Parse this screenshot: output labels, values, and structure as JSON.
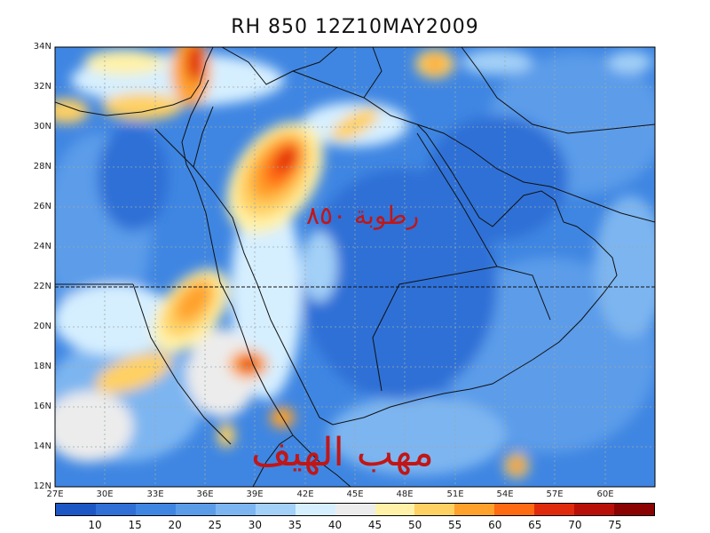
{
  "map": {
    "title": "RH 850 12Z10MAY2009",
    "lat_labels": [
      "34N",
      "32N",
      "30N",
      "28N",
      "26N",
      "24N",
      "22N",
      "20N",
      "18N",
      "16N",
      "14N",
      "12N"
    ],
    "lon_labels": [
      "27E",
      "30E",
      "33E",
      "36E",
      "39E",
      "42E",
      "45E",
      "48E",
      "51E",
      "54E",
      "57E",
      "60E"
    ],
    "overlay_text_top": "رطوبة ٨٥٠",
    "overlay_text_bottom": "مهب الهيف"
  },
  "legend": {
    "labels": [
      "10",
      "15",
      "20",
      "25",
      "30",
      "35",
      "40",
      "45",
      "50",
      "55",
      "60",
      "65",
      "70",
      "75"
    ],
    "colors": [
      "#1d57c6",
      "#2f6fd6",
      "#3f86e2",
      "#5b9ce9",
      "#7db5f0",
      "#a3d0f7",
      "#d6efff",
      "#ececec",
      "#fff2a8",
      "#ffd062",
      "#ffa12a",
      "#ff6a12",
      "#e02a0c",
      "#b81008",
      "#8a0202"
    ]
  }
}
